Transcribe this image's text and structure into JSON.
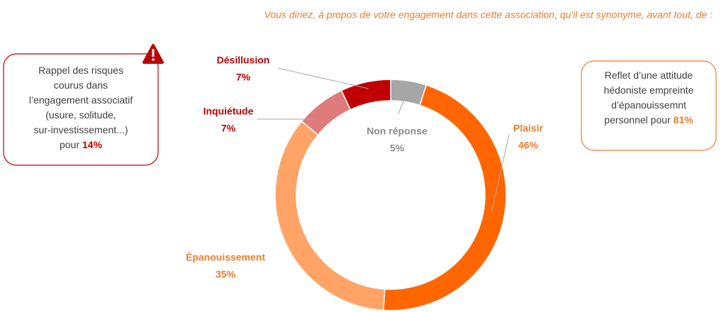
{
  "chart_data": {
    "type": "donut",
    "title": "Vous diriez, à propos de votre engagement dans cette association, qu'il est synonyme, avant tout, de :",
    "categories": [
      "Non réponse",
      "Plaisir",
      "Épanouissement",
      "Inquiétude",
      "Désillusion"
    ],
    "values": [
      5,
      46,
      35,
      7,
      7
    ],
    "value_labels": [
      "5%",
      "46%",
      "35%",
      "7%",
      "7%"
    ],
    "colors": [
      "#a6a6a6",
      "#ff6600",
      "#ffa366",
      "#e07b7b",
      "#c00000"
    ],
    "annotations": [
      {
        "lines": [
          "Rappel des risques",
          "courus dans",
          "l’engagement associatif",
          "(usure, solitude,",
          "sur-investissement...)",
          "pour"
        ],
        "highlight": "14%"
      },
      {
        "lines": [
          "Reflet d’une attitude",
          "hédoniste empreinte",
          "d’épanouissemnt",
          "personnel pour"
        ],
        "highlight": "81%"
      }
    ]
  }
}
